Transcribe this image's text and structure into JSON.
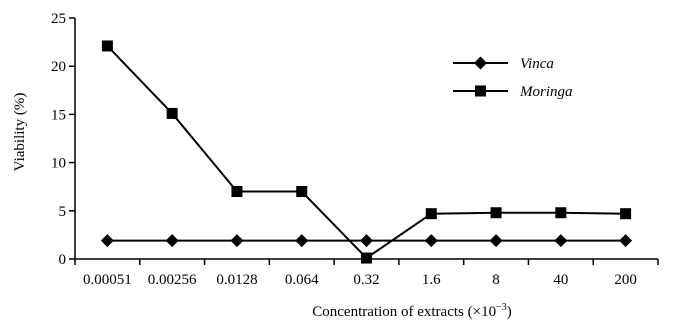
{
  "chart_data": {
    "type": "line",
    "categories": [
      "0.00051",
      "0.00256",
      "0.0128",
      "0.064",
      "0.32",
      "1.6",
      "8",
      "40",
      "200"
    ],
    "series": [
      {
        "name": "Vinca",
        "marker": "diamond",
        "color": "#000000",
        "values": [
          1.9,
          1.9,
          1.9,
          1.9,
          1.9,
          1.9,
          1.9,
          1.9,
          1.9
        ]
      },
      {
        "name": "Moringa",
        "marker": "square",
        "color": "#000000",
        "values": [
          22.1,
          15.1,
          7.0,
          7.0,
          0.1,
          4.7,
          4.8,
          4.8,
          4.7
        ]
      }
    ],
    "title": "",
    "xlabel": "Concentration of extracts (×10",
    "xlabel_sup": "−3",
    "xlabel_close": ")",
    "ylabel": "Viability (%)",
    "ylim": [
      0,
      25
    ],
    "yticks": [
      "0",
      "5",
      "10",
      "15",
      "20",
      "25"
    ],
    "grid": false,
    "legend_position": "top-right"
  }
}
